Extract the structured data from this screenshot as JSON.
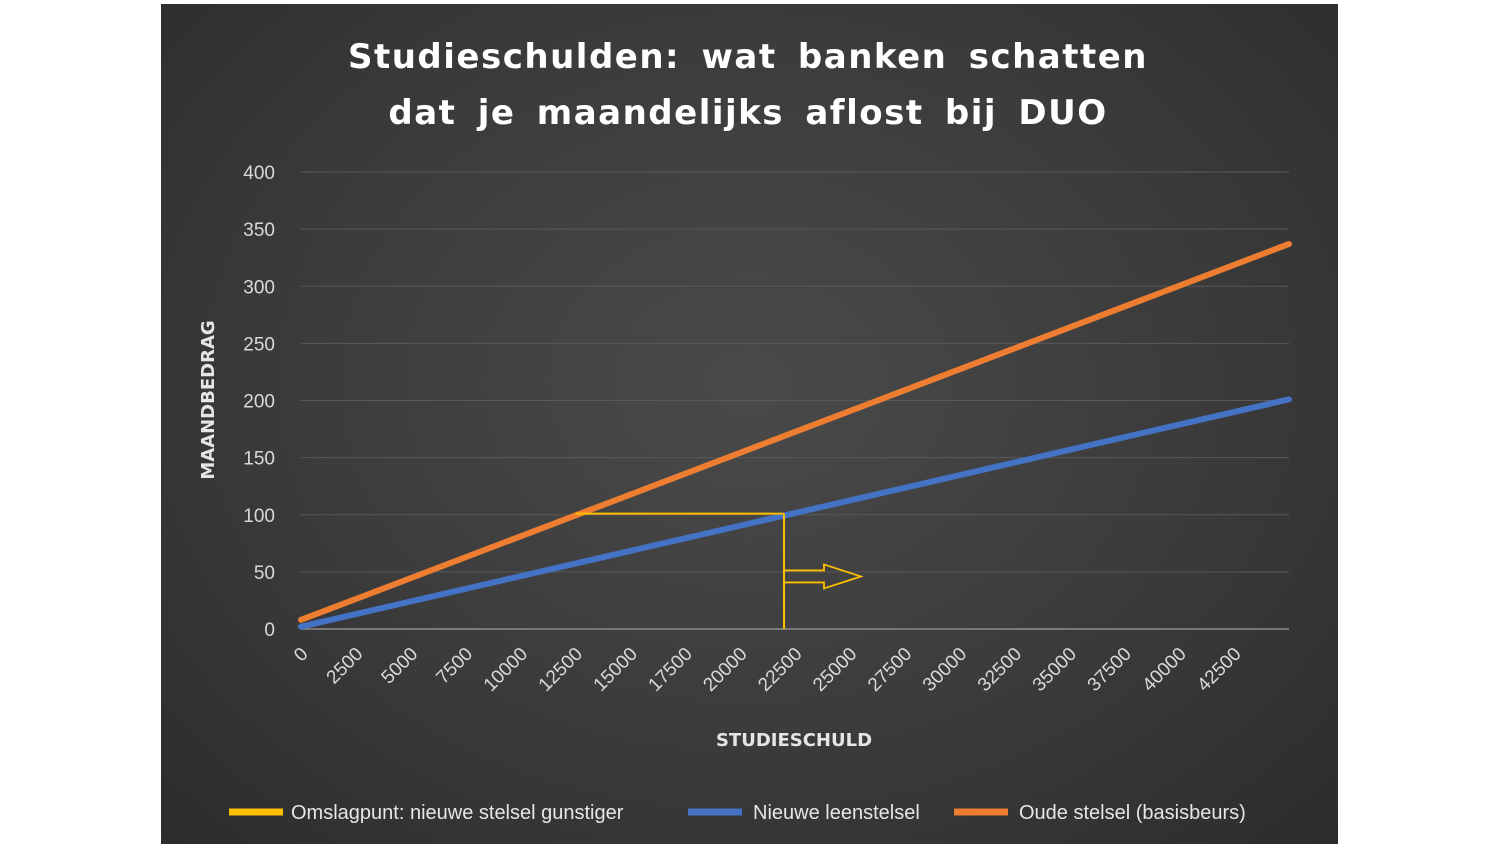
{
  "chart_data": {
    "type": "line",
    "title_lines": [
      "Studieschulden:  wat banken  schatten",
      "dat je maandelijks  aflost bij DUO"
    ],
    "xlabel": "STUDIESCHULD",
    "ylabel": "MAANDBEDRAG",
    "x_ticks": [
      0,
      2500,
      5000,
      7500,
      10000,
      12500,
      15000,
      17500,
      20000,
      22500,
      25000,
      27500,
      30000,
      32500,
      35000,
      37500,
      40000,
      42500
    ],
    "y_ticks": [
      0,
      50,
      100,
      150,
      200,
      250,
      300,
      350,
      400
    ],
    "xlim": [
      0,
      45000
    ],
    "ylim": [
      0,
      400
    ],
    "grid": true,
    "legend_position": "bottom",
    "series": [
      {
        "name": "Nieuwe leenstelsel",
        "color": "#4472C4",
        "x": [
          0,
          45000
        ],
        "y": [
          2,
          201
        ]
      },
      {
        "name": "Oude stelsel (basisbeurs)",
        "color": "#ED7D31",
        "x": [
          0,
          45000
        ],
        "y": [
          8,
          337
        ]
      }
    ],
    "annotation": {
      "name": "Omslagpunt: nieuwe stelsel gunstiger",
      "color": "#FFC000",
      "horizontal": {
        "x": [
          12500,
          22000
        ],
        "y": 101
      },
      "vertical": {
        "x": 22000,
        "y": [
          0,
          101
        ]
      },
      "arrow": {
        "x": [
          22000,
          25500
        ],
        "y": 46
      }
    },
    "legend": [
      {
        "label": "Omslagpunt: nieuwe stelsel gunstiger",
        "color": "#FFC000"
      },
      {
        "label": "Nieuwe leenstelsel",
        "color": "#4472C4"
      },
      {
        "label": "Oude stelsel (basisbeurs)",
        "color": "#ED7D31"
      }
    ],
    "colors": {
      "grid": "#595959",
      "axis": "#8c8c8c",
      "text": "#d9d9d9"
    }
  }
}
